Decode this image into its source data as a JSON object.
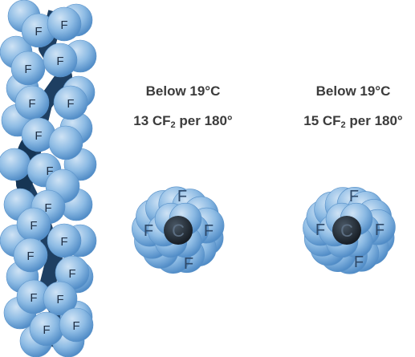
{
  "colors": {
    "atom_light": "#a8cbe9",
    "atom_mid": "#6fa6d8",
    "atom_edge": "#3a78b8",
    "chain_dark": "#1e3f62",
    "carbon": "#1a2330",
    "label_text": "#2f4a6a",
    "caption_text": "#3b3b3b"
  },
  "atom_labels": {
    "fluorine": "F",
    "carbon": "C"
  },
  "captions": [
    {
      "line1": "Below 19°C",
      "count": "13 CF",
      "subscript": "2",
      "suffix": " per 180°"
    },
    {
      "line1": "Below 19°C",
      "count": "15 CF",
      "subscript": "2",
      "suffix": " per 180°"
    }
  ],
  "icons": [
    "ptfe-helix-side-view",
    "helix-end-view-13",
    "helix-end-view-15"
  ]
}
